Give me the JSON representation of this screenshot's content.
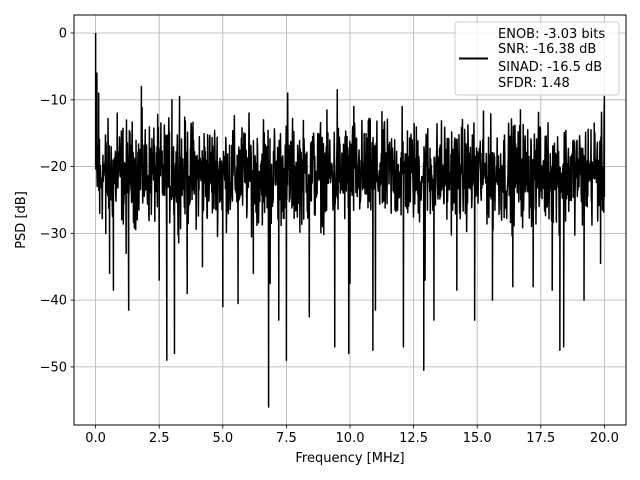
{
  "chart_data": {
    "type": "line",
    "xlabel": "Frequency [MHz]",
    "ylabel": "PSD [dB]",
    "xlim": [
      -0.85,
      20.85
    ],
    "ylim": [
      -58.7,
      2.7
    ],
    "xticks": [
      0.0,
      2.5,
      5.0,
      7.5,
      10.0,
      12.5,
      15.0,
      17.5,
      20.0
    ],
    "xtick_labels": [
      "0.0",
      "2.5",
      "5.0",
      "7.5",
      "10.0",
      "12.5",
      "15.0",
      "17.5",
      "20.0"
    ],
    "yticks": [
      0,
      -10,
      -20,
      -30,
      -40,
      -50
    ],
    "ytick_labels": [
      "0",
      "−10",
      "−20",
      "−30",
      "−40",
      "−50"
    ],
    "grid": true,
    "legend": {
      "placement": "top-right",
      "lines": [
        "ENOB: -3.03 bits",
        "SNR: -16.38 dB",
        "SINAD: -16.5 dB",
        "SFDR: 1.48"
      ]
    },
    "series": [
      {
        "color": "#000000",
        "noise_floor_db": -21,
        "x_range": [
          0,
          20
        ],
        "x": [
          0.0,
          0.02,
          0.05,
          0.08,
          0.12,
          0.16,
          0.25,
          0.4,
          0.55,
          0.7,
          0.85,
          1.2,
          1.3,
          1.8,
          2.5,
          2.8,
          3.0,
          3.1,
          3.3,
          3.6,
          4.2,
          5.0,
          5.6,
          6.2,
          6.6,
          6.8,
          6.86,
          7.2,
          7.5,
          7.55,
          8.4,
          9.4,
          9.5,
          9.95,
          10.0,
          10.15,
          10.9,
          11.0,
          12.05,
          12.1,
          12.9,
          12.95,
          13.3,
          14.2,
          14.9,
          15.6,
          16.4,
          16.7,
          17.2,
          17.95,
          18.25,
          18.4,
          19.2,
          19.6,
          19.85,
          19.95,
          20.0
        ],
        "y": [
          0.0,
          -14.5,
          -6.0,
          -17.0,
          -9.0,
          -27.0,
          -23.0,
          -30.0,
          -36.0,
          -38.5,
          -12.0,
          -33.0,
          -41.5,
          -8.0,
          -37.0,
          -49.0,
          -10.0,
          -48.0,
          -9.5,
          -39.0,
          -35.0,
          -41.0,
          -40.5,
          -36.0,
          -13.0,
          -56.0,
          -37.5,
          -43.0,
          -49.0,
          -9.0,
          -42.5,
          -47.0,
          -8.5,
          -48.0,
          -37.5,
          -11.0,
          -47.5,
          -41.5,
          -11.0,
          -47.0,
          -50.5,
          -37.0,
          -43.0,
          -38.5,
          -43.0,
          -40.0,
          -38.0,
          -11.5,
          -38.0,
          -38.5,
          -47.5,
          -47.0,
          -40.0,
          -13.5,
          -34.5,
          -23.0,
          -9.5
        ]
      }
    ]
  }
}
